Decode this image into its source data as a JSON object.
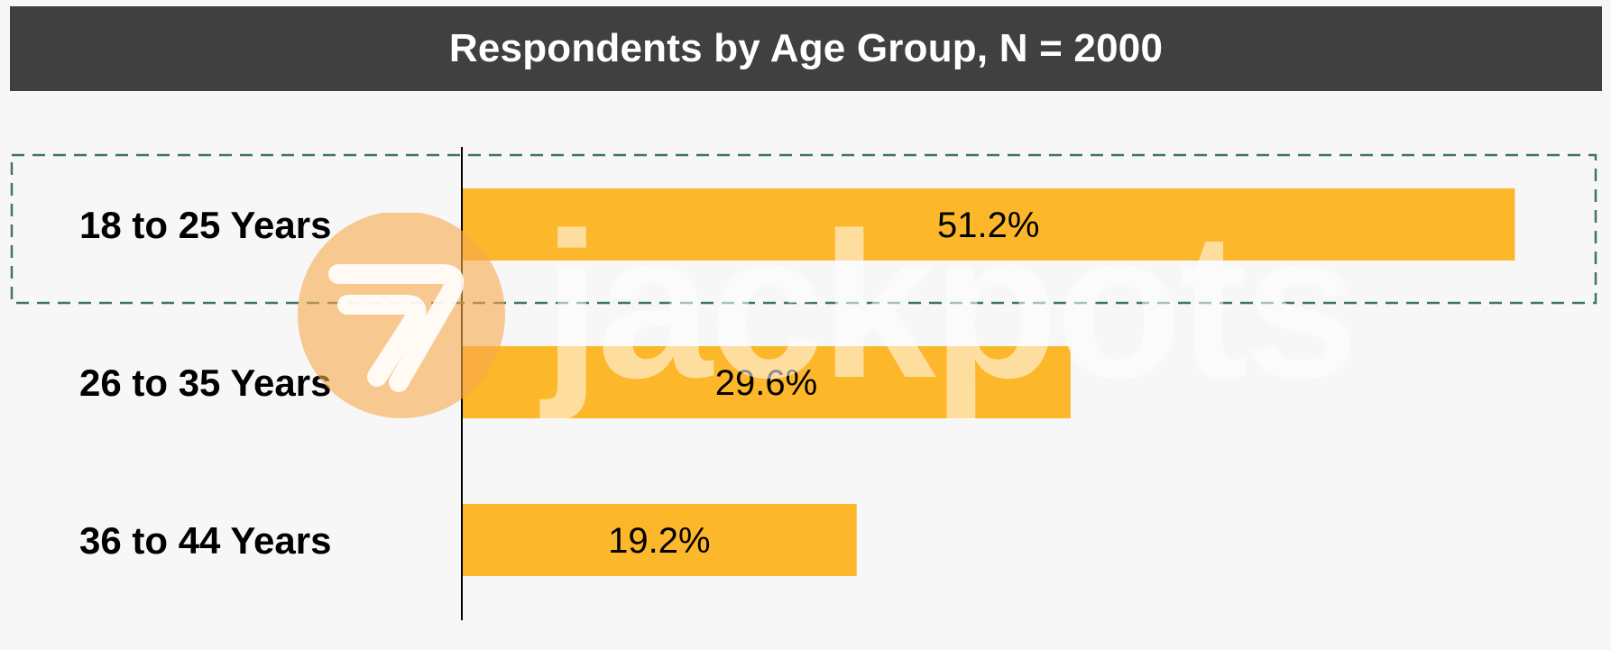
{
  "chart_data": {
    "type": "bar",
    "orientation": "horizontal",
    "title": "Respondents by Age Group, N = 2000",
    "categories": [
      "18 to 25 Years",
      "26 to 35 Years",
      "36 to 44 Years"
    ],
    "values": [
      51.2,
      29.6,
      19.2
    ],
    "value_labels": [
      "51.2%",
      "29.6%",
      "19.2%"
    ],
    "xlim": [
      0,
      55
    ],
    "grid": false,
    "legend": "none",
    "highlighted_category": "18 to 25 Years"
  },
  "colors": {
    "bar": "#fdb72b",
    "title_background": "#404040",
    "title_text": "#ffffff",
    "background": "#f7f7f7",
    "highlight_border": "#3f7565",
    "watermark_circle": "#f9a94c"
  },
  "watermark": {
    "text": "jackpots",
    "icon": "seven-logo-icon"
  }
}
